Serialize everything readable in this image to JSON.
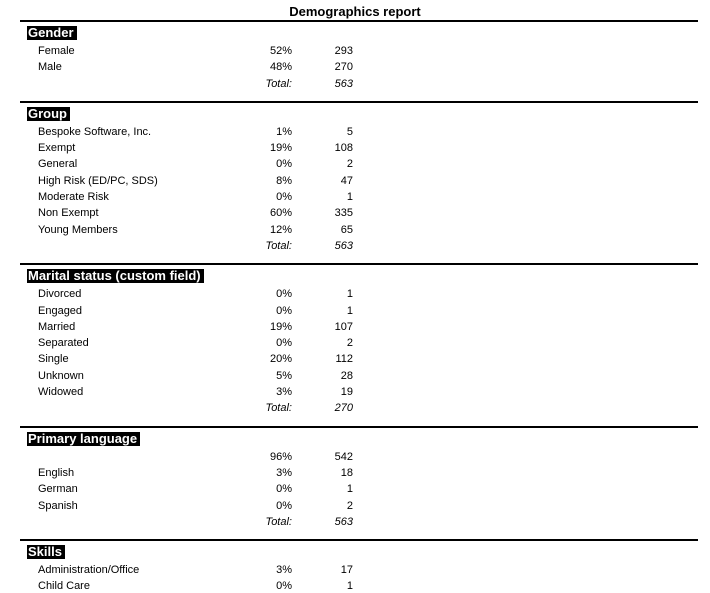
{
  "title": "Demographics report",
  "total_label": "Total:",
  "colors": {
    "background": "#ffffff",
    "text": "#000000",
    "section_header_bg": "#000000",
    "section_header_text": "#ffffff",
    "rule": "#000000"
  },
  "sections": [
    {
      "header": "Gender",
      "rows": [
        {
          "label": "Female",
          "percent": "52%",
          "count": "293"
        },
        {
          "label": "Male",
          "percent": "48%",
          "count": "270"
        }
      ],
      "total": "563"
    },
    {
      "header": "Group",
      "rows": [
        {
          "label": "Bespoke Software, Inc.",
          "percent": "1%",
          "count": "5"
        },
        {
          "label": "Exempt",
          "percent": "19%",
          "count": "108"
        },
        {
          "label": "General",
          "percent": "0%",
          "count": "2"
        },
        {
          "label": "High Risk (ED/PC, SDS)",
          "percent": "8%",
          "count": "47"
        },
        {
          "label": "Moderate Risk",
          "percent": "0%",
          "count": "1"
        },
        {
          "label": "Non Exempt",
          "percent": "60%",
          "count": "335"
        },
        {
          "label": "Young Members",
          "percent": "12%",
          "count": "65"
        }
      ],
      "total": "563"
    },
    {
      "header": "Marital status (custom field)",
      "rows": [
        {
          "label": "Divorced",
          "percent": "0%",
          "count": "1"
        },
        {
          "label": "Engaged",
          "percent": "0%",
          "count": "1"
        },
        {
          "label": "Married",
          "percent": "19%",
          "count": "107"
        },
        {
          "label": "Separated",
          "percent": "0%",
          "count": "2"
        },
        {
          "label": "Single",
          "percent": "20%",
          "count": "112"
        },
        {
          "label": "Unknown",
          "percent": "5%",
          "count": "28"
        },
        {
          "label": "Widowed",
          "percent": "3%",
          "count": "19"
        }
      ],
      "total": "270"
    },
    {
      "header": "Primary language",
      "rows": [
        {
          "label": "",
          "percent": "96%",
          "count": "542"
        },
        {
          "label": "English",
          "percent": "3%",
          "count": "18"
        },
        {
          "label": "German",
          "percent": "0%",
          "count": "1"
        },
        {
          "label": "Spanish",
          "percent": "0%",
          "count": "2"
        }
      ],
      "total": "563"
    },
    {
      "header": "Skills",
      "rows": [
        {
          "label": "Administration/Office",
          "percent": "3%",
          "count": "17"
        },
        {
          "label": "Child Care",
          "percent": "0%",
          "count": "1"
        }
      ],
      "total": null
    }
  ]
}
